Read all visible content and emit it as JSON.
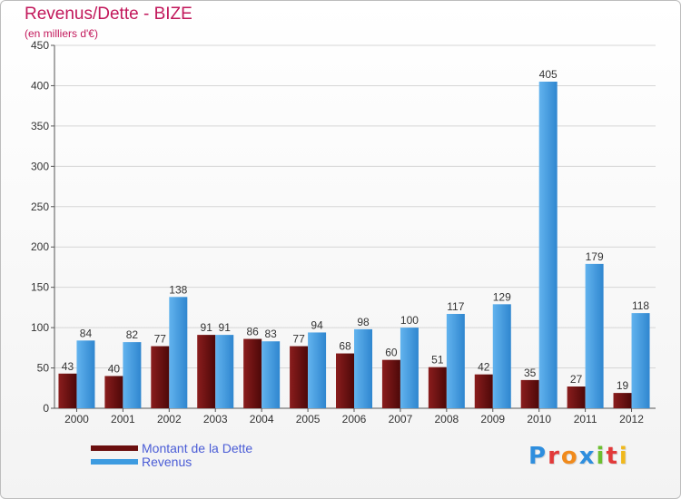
{
  "chart_data": {
    "type": "bar",
    "title": "Revenus/Dette - BIZE",
    "subtitle": "(en milliers d'€)",
    "categories": [
      "2000",
      "2001",
      "2002",
      "2003",
      "2004",
      "2005",
      "2006",
      "2007",
      "2008",
      "2009",
      "2010",
      "2011",
      "2012"
    ],
    "series": [
      {
        "name": "Montant de la Dette",
        "color": "#6b0f0f",
        "values": [
          43,
          40,
          77,
          91,
          86,
          77,
          68,
          60,
          51,
          42,
          35,
          27,
          19
        ]
      },
      {
        "name": "Revenus",
        "color": "#3d9be0",
        "values": [
          84,
          82,
          138,
          91,
          83,
          94,
          98,
          100,
          117,
          129,
          405,
          179,
          118
        ]
      }
    ],
    "ylim": [
      0,
      450
    ],
    "yticks": [
      0,
      50,
      100,
      150,
      200,
      250,
      300,
      350,
      400,
      450
    ],
    "grid": true,
    "legend": "bottom-left"
  },
  "logo": {
    "letters": [
      "P",
      "r",
      "o",
      "x",
      "i",
      "t",
      "i"
    ],
    "colors": [
      "#2e8ede",
      "#e23a3a",
      "#f08a1c",
      "#2e8ede",
      "#6cbf2f",
      "#e23a3a",
      "#f0b81c"
    ]
  }
}
